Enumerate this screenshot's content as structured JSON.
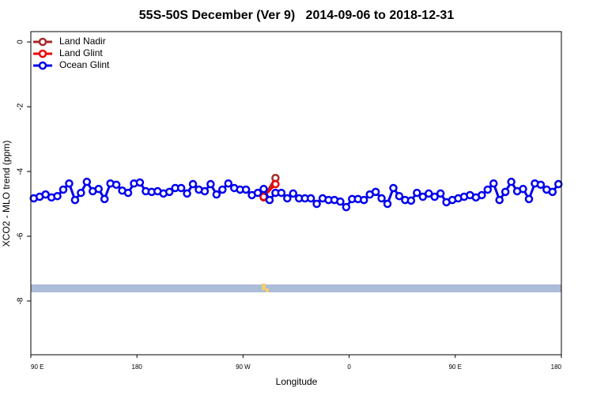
{
  "chart_data": {
    "type": "line",
    "title": "55S-50S December (Ver 9)   2014-09-06 to 2018-12-31",
    "xlabel": "Longitude",
    "ylabel": "XCO2 - MLO trend (ppm)",
    "xlim": [
      90,
      540
    ],
    "xticks": [
      {
        "value": 90,
        "label": "90 E"
      },
      180,
      {
        "value": 270,
        "label": "90 W"
      },
      {
        "value": 360,
        "label": "0"
      },
      {
        "value": 450,
        "label": "90 E"
      },
      {
        "value": 540,
        "label": "180"
      }
    ],
    "ylim": [
      -9.66,
      0.32
    ],
    "yticks": [
      0,
      -2,
      -4,
      -6,
      -8
    ],
    "legend": "upper left",
    "series": [
      {
        "name": "Land Nadir",
        "color": "#a52a2a",
        "x": [
          287.5,
          297.5
        ],
        "values": [
          -4.8,
          -4.2
        ]
      },
      {
        "name": "Land Glint",
        "color": "#ee0000",
        "x": [
          287.5,
          297.5
        ],
        "values": [
          -4.78,
          -4.39
        ]
      },
      {
        "name": "Ocean Glint",
        "color": "#0000ee",
        "x": [
          92.5,
          97.5,
          102.5,
          107.5,
          112.5,
          117.5,
          122.5,
          127.5,
          132.5,
          137.5,
          142.5,
          147.5,
          152.5,
          157.5,
          162.5,
          167.5,
          172.5,
          177.5,
          182.5,
          187.5,
          192.5,
          197.5,
          202.5,
          207.5,
          212.5,
          217.5,
          222.5,
          227.5,
          232.5,
          237.5,
          242.5,
          247.5,
          252.5,
          257.5,
          262.5,
          267.5,
          272.5,
          277.5,
          282.5,
          287.5,
          292.5,
          297.5,
          302.5,
          307.5,
          312.5,
          317.5,
          322.5,
          327.5,
          332.5,
          337.5,
          342.5,
          347.5,
          352.5,
          357.5,
          362.5,
          367.5,
          372.5,
          377.5,
          382.5,
          387.5,
          392.5,
          397.5,
          402.5,
          407.5,
          412.5,
          417.5,
          422.5,
          427.5,
          432.5,
          437.5,
          442.5,
          447.5,
          452.5,
          457.5,
          462.5,
          467.5,
          472.5,
          477.5,
          482.5,
          487.5,
          492.5,
          497.5,
          502.5,
          507.5,
          512.5,
          517.5,
          522.5,
          527.5,
          532.5,
          537.5
        ],
        "values": [
          -4.83,
          -4.78,
          -4.71,
          -4.8,
          -4.76,
          -4.56,
          -4.37,
          -4.88,
          -4.66,
          -4.32,
          -4.61,
          -4.54,
          -4.85,
          -4.37,
          -4.41,
          -4.59,
          -4.66,
          -4.37,
          -4.34,
          -4.61,
          -4.63,
          -4.61,
          -4.68,
          -4.63,
          -4.51,
          -4.51,
          -4.68,
          -4.39,
          -4.56,
          -4.61,
          -4.39,
          -4.71,
          -4.56,
          -4.37,
          -4.51,
          -4.56,
          -4.56,
          -4.73,
          -4.66,
          -4.54,
          -4.88,
          -4.66,
          -4.66,
          -4.83,
          -4.68,
          -4.83,
          -4.83,
          -4.83,
          -5.0,
          -4.83,
          -4.88,
          -4.88,
          -4.93,
          -5.1,
          -4.85,
          -4.85,
          -4.88,
          -4.71,
          -4.63,
          -4.83,
          -5.0,
          -4.51,
          -4.76,
          -4.88,
          -4.9,
          -4.66,
          -4.78,
          -4.68,
          -4.78,
          -4.68,
          -4.95,
          -4.88,
          -4.83,
          -4.78,
          -4.73,
          -4.8,
          -4.73,
          -4.56,
          -4.37,
          -4.88,
          -4.63,
          -4.32,
          -4.61,
          -4.54,
          -4.85,
          -4.37,
          -4.41,
          -4.56,
          -4.63,
          -4.39
        ]
      }
    ]
  }
}
